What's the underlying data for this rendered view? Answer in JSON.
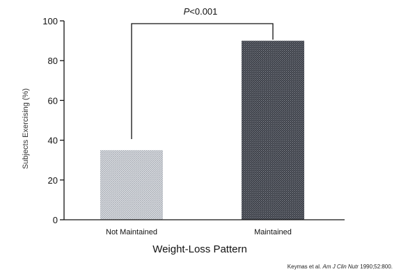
{
  "chart_data": {
    "type": "bar",
    "categories": [
      "Not Maintained",
      "Maintained"
    ],
    "values": [
      35,
      90
    ],
    "ylabel": "Subjects Exercising (%)",
    "xlabel": "Weight-Loss Pattern",
    "ylim": [
      0,
      100
    ],
    "yticks": [
      0,
      20,
      40,
      60,
      80,
      100
    ],
    "grid": false,
    "legend": "none",
    "annotation": {
      "prefix": "P",
      "text": "<0.001"
    },
    "source": {
      "lead": "Keymas et al.",
      "journal": "Am J Clin Nutr",
      "tail": "1990;52:800."
    },
    "colors": {
      "not_maintained_fill": "#c3c7cd",
      "maintained_fill": "#4a4d55",
      "axis": "#111111"
    }
  }
}
